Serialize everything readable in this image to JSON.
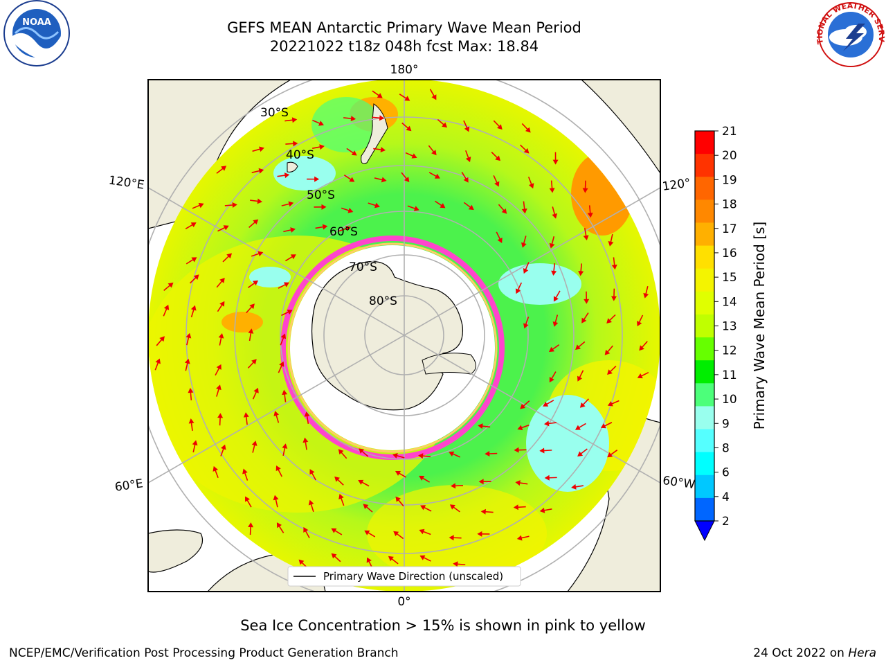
{
  "title": {
    "line1": "GEFS MEAN Antarctic Primary Wave Mean Period",
    "line2": "20221022 t18z 048h fcst   Max: 18.84"
  },
  "map": {
    "projection": "south polar stereographic",
    "longitude_labels": {
      "top": "180°",
      "bottom": "0°",
      "upper_left": "120°E",
      "upper_right": "120°",
      "lower_left": "60°E",
      "lower_right": "60°W"
    },
    "latitude_labels": [
      "30°S",
      "40°S",
      "50°S",
      "60°S",
      "70°S",
      "80°S"
    ],
    "legend": "Primary Wave Direction (unscaled)",
    "colors": {
      "land": "#efeddc",
      "ice_edge": "#ff44cc",
      "arrow": "#ee0000",
      "grid": "#b0b0b0"
    }
  },
  "colorbar": {
    "label": "Primary Wave Mean Period [s]",
    "ticks": [
      "21",
      "20",
      "19",
      "18",
      "17",
      "16",
      "15",
      "14",
      "13",
      "12",
      "11",
      "10",
      "9",
      "8",
      "6",
      "4",
      "2"
    ],
    "colors": [
      "#ff0000",
      "#ff3300",
      "#ff6600",
      "#ff8800",
      "#ffb000",
      "#ffe000",
      "#f4f400",
      "#e0ff00",
      "#c0ff00",
      "#66ff00",
      "#00ee00",
      "#4cff7a",
      "#99ffee",
      "#55ffff",
      "#00ffff",
      "#00c8ff",
      "#0066ff"
    ],
    "extend_color": "#0000ff"
  },
  "note": "Sea Ice Concentration > 15% is shown in pink to yellow",
  "footer": {
    "left": "NCEP/EMC/Verification Post Processing Product Generation Branch",
    "right_date": "24 Oct 2022 on ",
    "right_machine": "Hera"
  },
  "logos": {
    "noaa_text": "NOAA",
    "nws_text": "NATIONAL WEATHER SERVICE"
  }
}
